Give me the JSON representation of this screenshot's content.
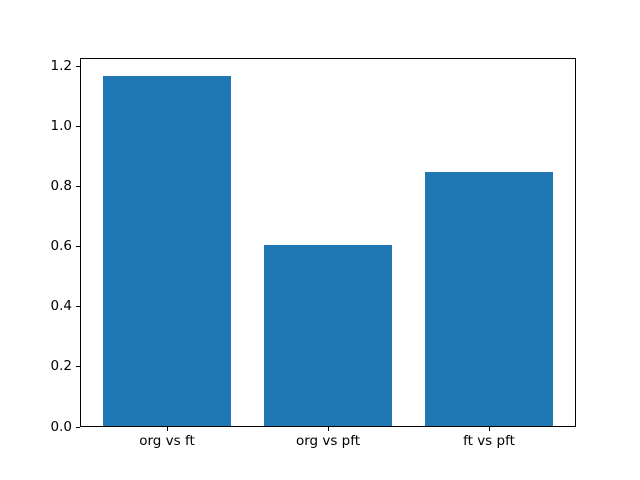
{
  "chart_data": {
    "type": "bar",
    "title": "",
    "xlabel": "",
    "ylabel": "",
    "categories": [
      "org vs ft",
      "org vs pft",
      "ft vs pft"
    ],
    "values": [
      1.17,
      0.605,
      0.85
    ],
    "bar_color": "#1f77b4",
    "bar_width_fraction": 0.8,
    "bar_centers": [
      0,
      1,
      2
    ],
    "xlim": [
      -0.54,
      2.54
    ],
    "ylim": [
      0,
      1.2285
    ],
    "yticks": [
      0.0,
      0.2,
      0.4,
      0.6,
      0.8,
      1.0,
      1.2
    ],
    "ytick_labels": [
      "0.0",
      "0.2",
      "0.4",
      "0.6",
      "0.8",
      "1.0",
      "1.2"
    ],
    "grid": false,
    "legend": null,
    "frame_color": "#000000",
    "background_color": "#ffffff"
  }
}
